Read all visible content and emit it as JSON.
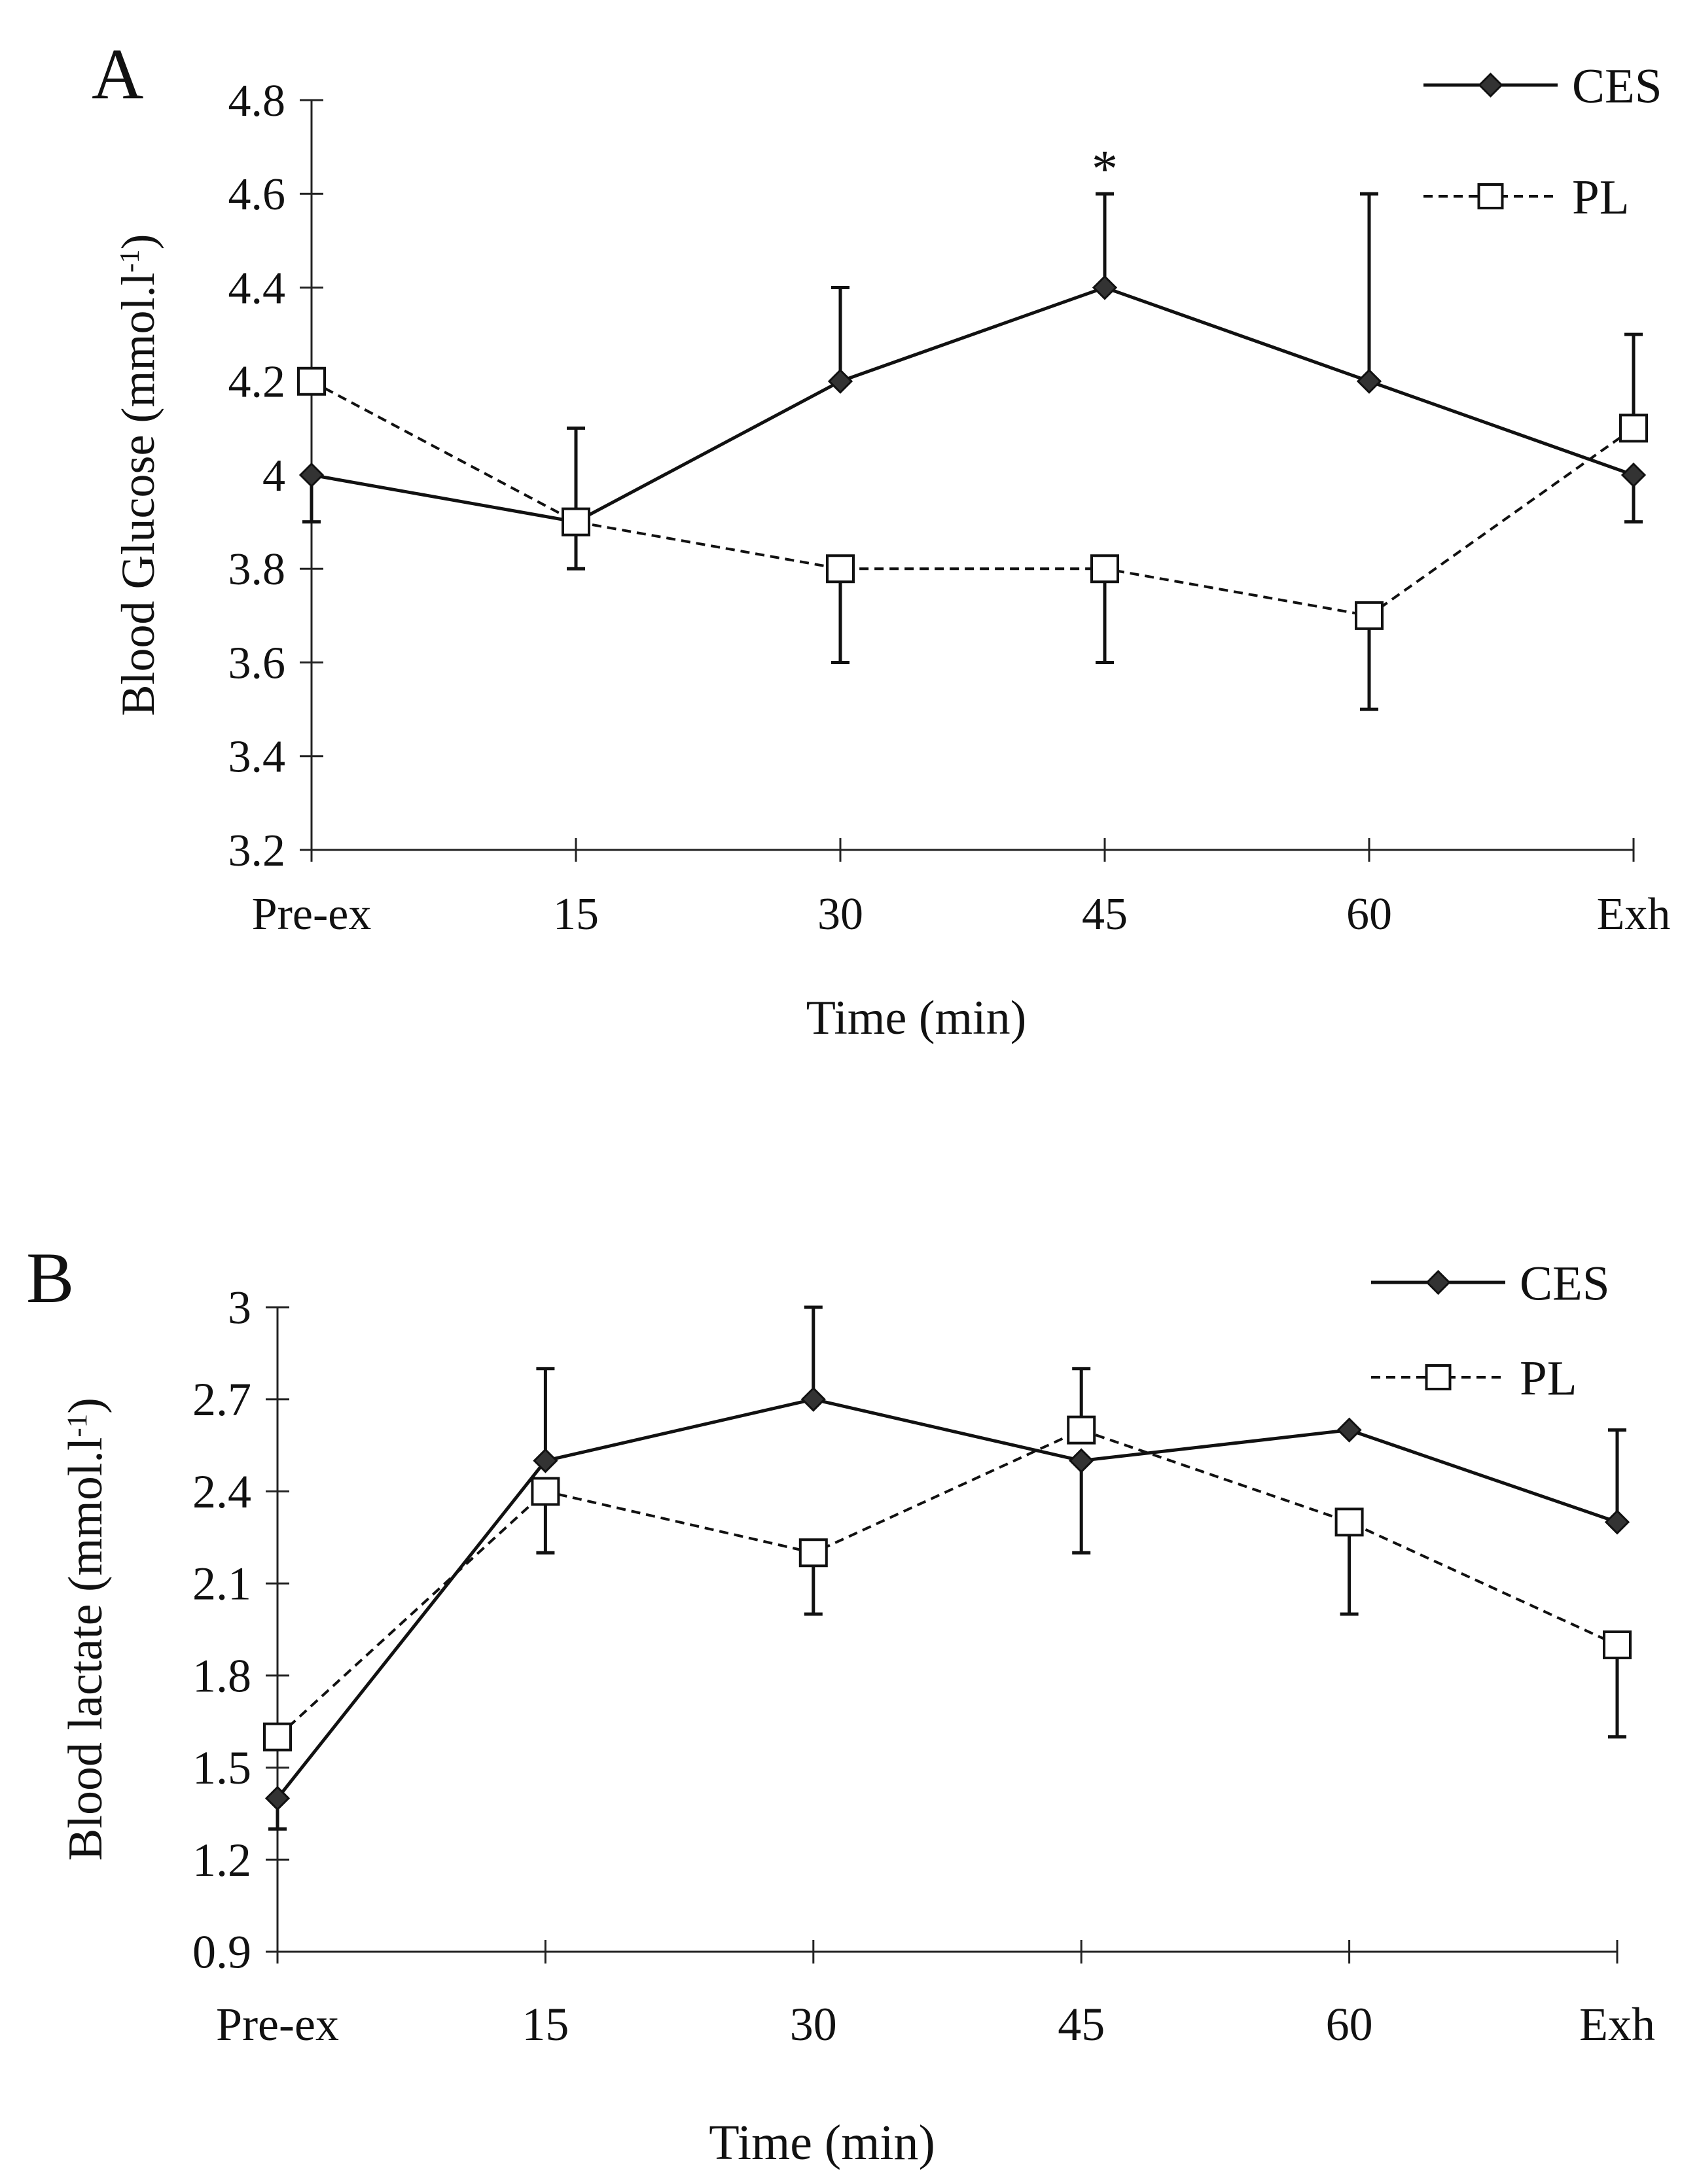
{
  "chart_data": [
    {
      "type": "line",
      "panel_label": "A",
      "title": "",
      "xlabel": "Time (min)",
      "ylabel": "Blood Glucose (mmol.l-1)",
      "ylabel_main": "Blood Glucose (mmol.l",
      "ylabel_sup": "-1",
      "ylabel_end": ")",
      "categories": [
        "Pre-ex",
        "15",
        "30",
        "45",
        "60",
        "Exh"
      ],
      "ylim": [
        3.2,
        4.8
      ],
      "yticks": [
        3.2,
        3.4,
        3.6,
        3.8,
        4,
        4.2,
        4.4,
        4.6,
        4.8
      ],
      "ytick_labels": [
        "3.2",
        "3.4",
        "3.6",
        "3.8",
        "4",
        "4.2",
        "4.4",
        "4.6",
        "4.8"
      ],
      "legend": "top-right",
      "series": [
        {
          "name": "CES",
          "style": "solid-diamond",
          "values": [
            4.0,
            3.9,
            4.2,
            4.4,
            4.2,
            4.0
          ],
          "error_ends": [
            3.9,
            3.8,
            4.4,
            4.6,
            4.6,
            3.9
          ]
        },
        {
          "name": "PL",
          "style": "dashed-open-square",
          "values": [
            4.2,
            3.9,
            3.8,
            3.8,
            3.7,
            4.1
          ],
          "error_ends": [
            4.2,
            4.1,
            3.6,
            3.6,
            3.5,
            4.3
          ]
        }
      ],
      "annotations": [
        {
          "text": "*",
          "category": "45",
          "value": 4.6
        }
      ]
    },
    {
      "type": "line",
      "panel_label": "B",
      "title": "",
      "xlabel": "Time (min)",
      "ylabel": "Blood lactate (mmol.l-1)",
      "ylabel_main": "Blood lactate (mmol.l",
      "ylabel_sup": "-1",
      "ylabel_end": ")",
      "categories": [
        "Pre-ex",
        "15",
        "30",
        "45",
        "60",
        "Exh"
      ],
      "ylim": [
        0.9,
        3.0
      ],
      "yticks": [
        0.9,
        1.2,
        1.5,
        1.8,
        2.1,
        2.4,
        2.7,
        3.0
      ],
      "ytick_labels": [
        "0.9",
        "1.2",
        "1.5",
        "1.8",
        "2.1",
        "2.4",
        "2.7",
        "3"
      ],
      "legend": "top-right",
      "series": [
        {
          "name": "CES",
          "style": "solid-diamond",
          "values": [
            1.4,
            2.5,
            2.7,
            2.5,
            2.6,
            2.3
          ],
          "error_ends": [
            1.3,
            2.8,
            3.0,
            2.2,
            2.6,
            2.6
          ]
        },
        {
          "name": "PL",
          "style": "dashed-open-square",
          "values": [
            1.6,
            2.4,
            2.2,
            2.6,
            2.3,
            1.9
          ],
          "error_ends": [
            1.6,
            2.2,
            2.0,
            2.8,
            2.0,
            1.6
          ]
        }
      ],
      "annotations": []
    }
  ]
}
